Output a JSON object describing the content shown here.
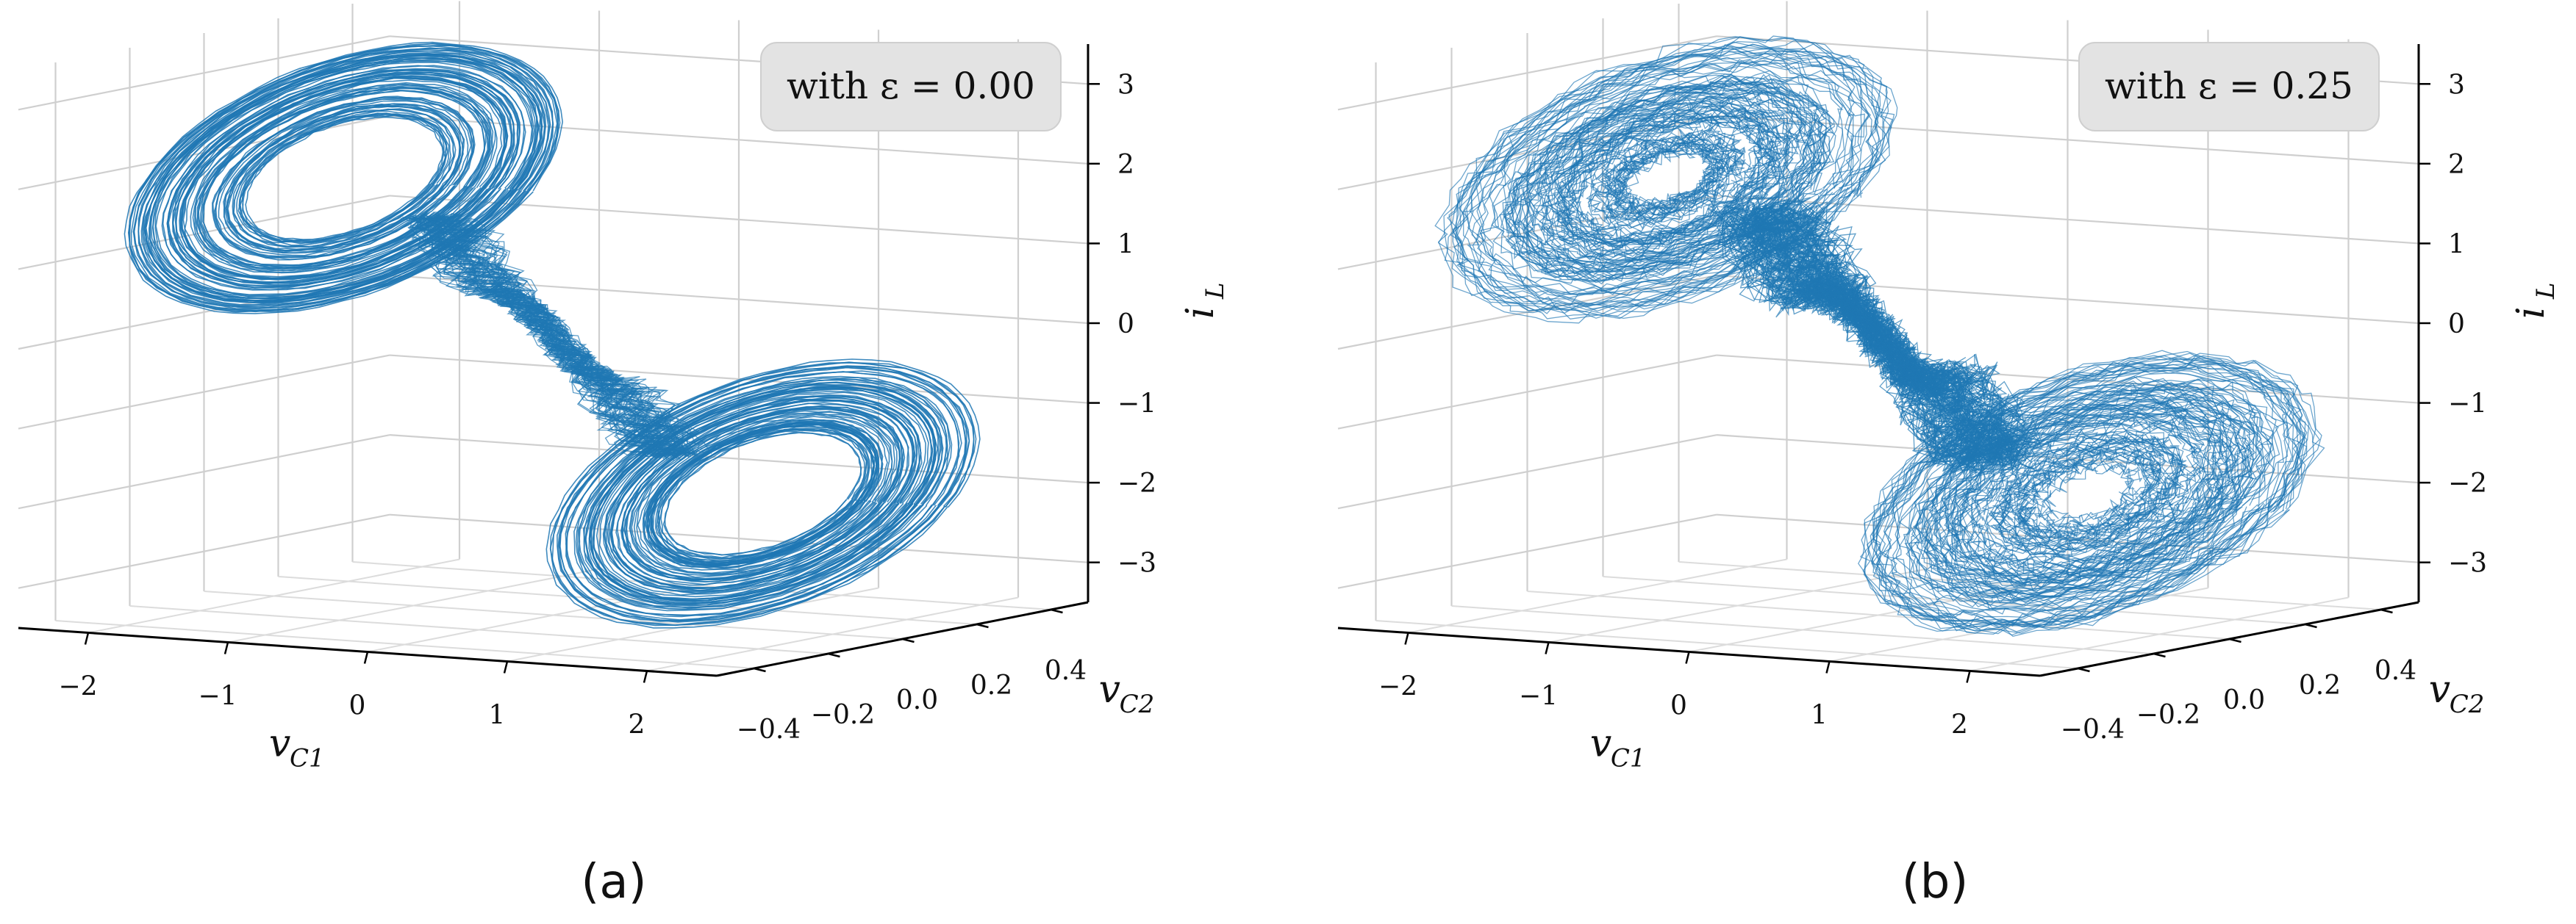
{
  "chart_data": [
    {
      "type": "line",
      "plot_kind": "3d-phase-trajectory",
      "panel_caption": "(a)",
      "legend": "with ε = 0.00",
      "epsilon": 0.0,
      "axes": {
        "x": {
          "label": "v",
          "label_sub": "C1",
          "ticks": [
            "−2",
            "−1",
            "0",
            "1",
            "2"
          ],
          "range": [
            -2.5,
            2.5
          ]
        },
        "y": {
          "label": "v",
          "label_sub": "C2",
          "ticks": [
            "−0.4",
            "−0.2",
            "0.0",
            "0.2",
            "0.4"
          ],
          "range": [
            -0.5,
            0.5
          ]
        },
        "z": {
          "label": "i",
          "label_sub": "L",
          "ticks": [
            "3",
            "2",
            "1",
            "0",
            "−1",
            "−2",
            "−3"
          ],
          "range": [
            -3.5,
            3.5
          ]
        }
      },
      "attractor": {
        "center_left": [
          -1.5,
          0.0,
          1.8
        ],
        "center_right": [
          1.5,
          0.0,
          -1.8
        ]
      },
      "series_color": "#1f77b4",
      "grid": true
    },
    {
      "type": "line",
      "plot_kind": "3d-phase-trajectory",
      "panel_caption": "(b)",
      "legend": "with ε = 0.25",
      "epsilon": 0.25,
      "axes": {
        "x": {
          "label": "v",
          "label_sub": "C1",
          "ticks": [
            "−2",
            "−1",
            "0",
            "1",
            "2"
          ],
          "range": [
            -2.5,
            2.5
          ]
        },
        "y": {
          "label": "v",
          "label_sub": "C2",
          "ticks": [
            "−0.4",
            "−0.2",
            "0.0",
            "0.2",
            "0.4"
          ],
          "range": [
            -0.5,
            0.5
          ]
        },
        "z": {
          "label": "i",
          "label_sub": "L",
          "ticks": [
            "3",
            "2",
            "1",
            "0",
            "−1",
            "−2",
            "−3"
          ],
          "range": [
            -3.5,
            3.5
          ]
        }
      },
      "attractor": {
        "center_left": [
          -1.5,
          0.0,
          1.8
        ],
        "center_right": [
          1.5,
          0.0,
          -1.8
        ]
      },
      "series_color": "#1f77b4",
      "grid": true
    }
  ]
}
